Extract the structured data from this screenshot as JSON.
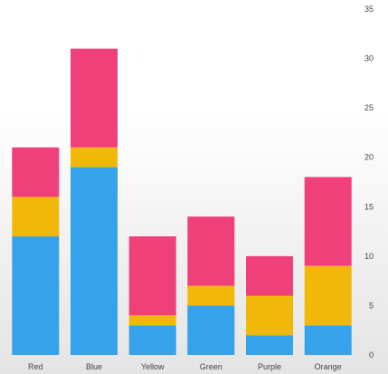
{
  "chart_data": {
    "type": "bar",
    "stacked": true,
    "categories": [
      "Red",
      "Blue",
      "Yellow",
      "Green",
      "Purple",
      "Orange"
    ],
    "series": [
      {
        "values": [
          12,
          19,
          3,
          5,
          2,
          3
        ],
        "color": "#36a2eb"
      },
      {
        "values": [
          4,
          2,
          1,
          2,
          4,
          6
        ],
        "color": "#f1b80a"
      },
      {
        "values": [
          5,
          10,
          8,
          7,
          4,
          9
        ],
        "color": "#f0407a"
      }
    ],
    "ylim": [
      0,
      35
    ],
    "yticks": [
      0,
      5,
      10,
      15,
      20,
      25,
      30,
      35
    ],
    "y_axis_side": "right",
    "grid": false,
    "legend": "none",
    "title": "",
    "xlabel": "",
    "ylabel": ""
  }
}
